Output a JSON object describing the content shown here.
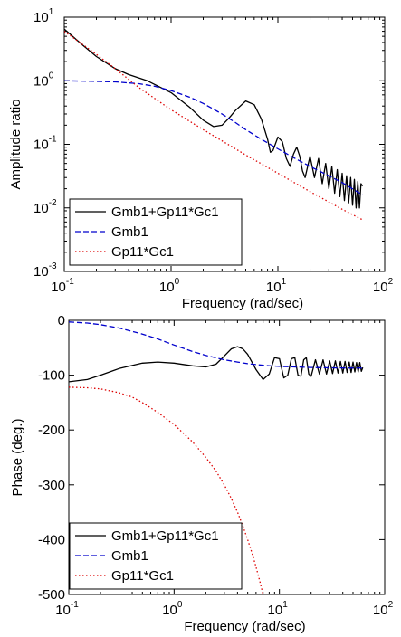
{
  "chart_data": [
    {
      "type": "line",
      "title": "",
      "xlabel": "Frequency (rad/sec)",
      "ylabel": "Amplitude ratio",
      "xscale": "log",
      "yscale": "log",
      "xlim": [
        0.1,
        100
      ],
      "ylim": [
        0.001,
        10
      ],
      "grid": false,
      "legend_position": "bottom-left",
      "x_ticks": [
        {
          "base": "10",
          "exp": "-1"
        },
        {
          "base": "10",
          "exp": "0"
        },
        {
          "base": "10",
          "exp": "1"
        },
        {
          "base": "10",
          "exp": "2"
        }
      ],
      "y_ticks": [
        {
          "base": "10",
          "exp": "-3"
        },
        {
          "base": "10",
          "exp": "-2"
        },
        {
          "base": "10",
          "exp": "-1"
        },
        {
          "base": "10",
          "exp": "0"
        },
        {
          "base": "10",
          "exp": "1"
        }
      ],
      "series": [
        {
          "name": "Gmb1+Gp11*Gc1",
          "color": "#000000",
          "style": "solid",
          "x": [
            0.1,
            0.15,
            0.2,
            0.3,
            0.4,
            0.6,
            1,
            1.5,
            2,
            2.5,
            3,
            3.5,
            4,
            5,
            6,
            7,
            8,
            8.5,
            9,
            10,
            11,
            12,
            13,
            14,
            15,
            16,
            17,
            18,
            19,
            20,
            22,
            24,
            26,
            28,
            30,
            32,
            34,
            36,
            38,
            40,
            42,
            44,
            46,
            48,
            50,
            52,
            54,
            56,
            58,
            60,
            62
          ],
          "y": [
            6.5,
            3.6,
            2.4,
            1.55,
            1.25,
            1.0,
            0.65,
            0.38,
            0.24,
            0.19,
            0.2,
            0.26,
            0.34,
            0.48,
            0.42,
            0.25,
            0.12,
            0.075,
            0.08,
            0.13,
            0.11,
            0.06,
            0.045,
            0.07,
            0.09,
            0.065,
            0.038,
            0.03,
            0.045,
            0.065,
            0.03,
            0.06,
            0.024,
            0.05,
            0.02,
            0.045,
            0.017,
            0.04,
            0.015,
            0.035,
            0.013,
            0.032,
            0.012,
            0.03,
            0.011,
            0.028,
            0.01,
            0.026,
            0.01,
            0.024,
            0.022
          ]
        },
        {
          "name": "Gmb1",
          "color": "#0000cc",
          "style": "dashed",
          "x": [
            0.1,
            0.2,
            0.3,
            0.5,
            0.7,
            1,
            1.5,
            2,
            3,
            4,
            5,
            7,
            10,
            15,
            20,
            30,
            40,
            62
          ],
          "y": [
            1.0,
            0.98,
            0.96,
            0.9,
            0.82,
            0.7,
            0.55,
            0.44,
            0.3,
            0.22,
            0.17,
            0.12,
            0.085,
            0.058,
            0.045,
            0.032,
            0.025,
            0.016
          ]
        },
        {
          "name": "Gp11*Gc1",
          "color": "#dd0000",
          "style": "dotted",
          "x": [
            0.1,
            0.2,
            0.3,
            0.5,
            1,
            2,
            5,
            10,
            20,
            40,
            62
          ],
          "y": [
            6.0,
            2.6,
            1.55,
            0.78,
            0.35,
            0.17,
            0.068,
            0.035,
            0.018,
            0.0095,
            0.0065
          ]
        }
      ]
    },
    {
      "type": "line",
      "title": "",
      "xlabel": "Frequency (rad/sec)",
      "ylabel": "Phase (deg.)",
      "xscale": "log",
      "yscale": "linear",
      "xlim": [
        0.1,
        100
      ],
      "ylim": [
        -500,
        0
      ],
      "grid": false,
      "legend_position": "bottom-left",
      "x_ticks": [
        {
          "base": "10",
          "exp": "-1"
        },
        {
          "base": "10",
          "exp": "0"
        },
        {
          "base": "10",
          "exp": "1"
        },
        {
          "base": "10",
          "exp": "2"
        }
      ],
      "y_ticks": [
        {
          "value": 0,
          "label": "0"
        },
        {
          "value": -100,
          "label": "-100"
        },
        {
          "value": -200,
          "label": "-200"
        },
        {
          "value": -300,
          "label": "-300"
        },
        {
          "value": -400,
          "label": "-400"
        },
        {
          "value": -500,
          "label": "-500"
        }
      ],
      "series": [
        {
          "name": "Gmb1+Gp11*Gc1",
          "color": "#000000",
          "style": "solid",
          "x": [
            0.1,
            0.15,
            0.2,
            0.3,
            0.5,
            0.7,
            1,
            1.5,
            2,
            2.5,
            3,
            3.5,
            4,
            4.5,
            5,
            6,
            7,
            8,
            9,
            10,
            11,
            12,
            13,
            14,
            15,
            16,
            17,
            18,
            19,
            20,
            22,
            24,
            26,
            28,
            30,
            32,
            34,
            36,
            38,
            40,
            42,
            44,
            46,
            48,
            50,
            52,
            54,
            56,
            58,
            60,
            62
          ],
          "y": [
            -112,
            -108,
            -100,
            -88,
            -78,
            -76,
            -78,
            -83,
            -85,
            -80,
            -65,
            -52,
            -48,
            -52,
            -62,
            -90,
            -108,
            -98,
            -68,
            -70,
            -105,
            -100,
            -70,
            -68,
            -100,
            -102,
            -72,
            -68,
            -98,
            -102,
            -72,
            -98,
            -72,
            -98,
            -74,
            -97,
            -74,
            -96,
            -75,
            -96,
            -75,
            -95,
            -76,
            -95,
            -76,
            -94,
            -77,
            -94,
            -77,
            -93,
            -86
          ]
        },
        {
          "name": "Gmb1",
          "color": "#0000cc",
          "style": "dashed",
          "x": [
            0.1,
            0.15,
            0.2,
            0.3,
            0.5,
            0.7,
            1,
            1.5,
            2,
            3,
            4,
            5,
            7,
            10,
            20,
            40,
            62
          ],
          "y": [
            -3,
            -5,
            -8,
            -14,
            -25,
            -34,
            -45,
            -57,
            -64,
            -72,
            -76,
            -79,
            -82,
            -84,
            -86,
            -87,
            -87
          ]
        },
        {
          "name": "Gp11*Gc1",
          "color": "#dd0000",
          "style": "dotted",
          "x": [
            0.1,
            0.15,
            0.2,
            0.3,
            0.4,
            0.5,
            0.7,
            1,
            1.5,
            2,
            2.5,
            3,
            3.5,
            4,
            4.5,
            5,
            5.5,
            6,
            6.5,
            7
          ],
          "y": [
            -122,
            -123,
            -125,
            -132,
            -140,
            -150,
            -168,
            -190,
            -222,
            -250,
            -275,
            -300,
            -325,
            -350,
            -375,
            -400,
            -425,
            -450,
            -475,
            -500
          ]
        }
      ]
    }
  ]
}
